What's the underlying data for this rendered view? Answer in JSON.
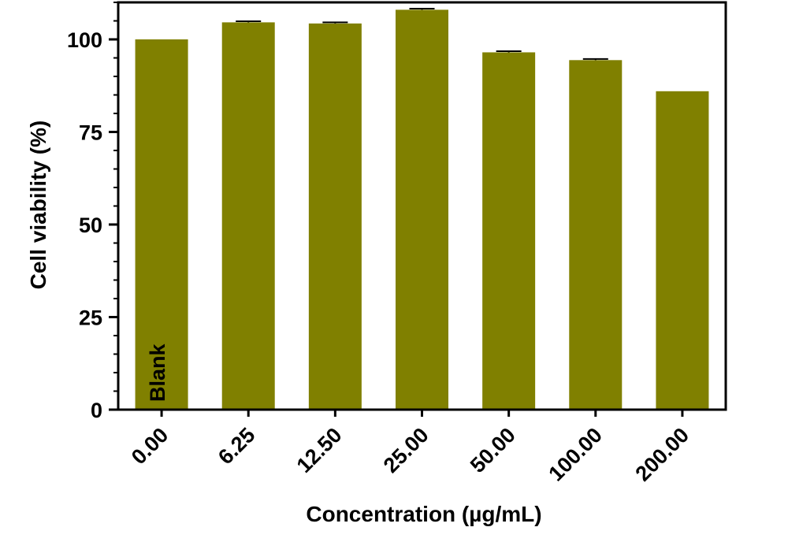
{
  "chart_data": {
    "type": "bar",
    "title": "",
    "xlabel": "Concentration (µg/mL)",
    "ylabel": "Cell viability (%)",
    "categories": [
      "0.00",
      "6.25",
      "12.50",
      "25.00",
      "50.00",
      "100.00",
      "200.00"
    ],
    "values": [
      100.0,
      104.6,
      104.3,
      108.0,
      96.5,
      94.4,
      86.0
    ],
    "errors": [
      0,
      0.3,
      0.3,
      0.3,
      0.3,
      0.3,
      0
    ],
    "ylim": [
      0,
      110
    ],
    "yticks": [
      0,
      25,
      50,
      75,
      100
    ],
    "y_minor_step": 5,
    "grid": false,
    "bar_color": "#808000",
    "bar_annotation": {
      "category": "0.00",
      "text": "Blank"
    }
  }
}
